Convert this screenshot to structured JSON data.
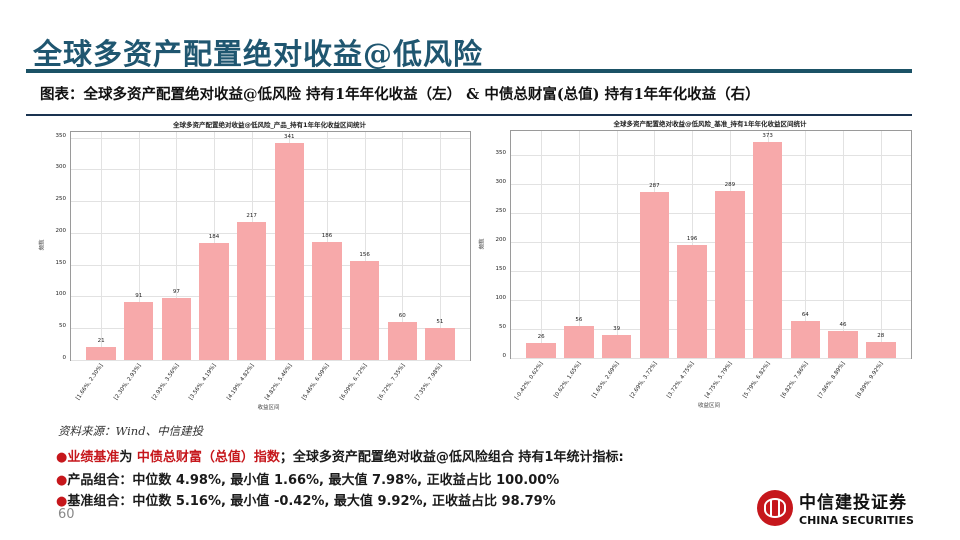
{
  "header": {
    "title": "全球多资产配置绝对收益@低风险",
    "subtitle": "图表：全球多资产配置绝对收益@低风险 持有1年年化收益（左） & 中债总财富(总值) 持有1年年化收益（右）"
  },
  "colors": {
    "title": "#1f5670",
    "rule": "#1b5266",
    "bar": "#f7a9aa",
    "accent_red": "#c6171c"
  },
  "chart_data": [
    {
      "type": "bar",
      "title": "全球多资产配置绝对收益@低风险_产品_持有1年年化收益区间统计",
      "xlabel": "收益区间",
      "ylabel": "频数",
      "categories": [
        "[1.66%, 2.30%]",
        "[2.30%, 2.93%]",
        "[2.93%, 3.56%]",
        "[3.56%, 4.19%]",
        "[4.19%, 4.82%]",
        "[4.82%, 5.46%]",
        "[5.46%, 6.09%]",
        "[6.09%, 6.72%]",
        "[6.72%, 7.35%]",
        "[7.35%, 7.98%]"
      ],
      "values": [
        21,
        91,
        97,
        184,
        217,
        341,
        186,
        156,
        60,
        51
      ],
      "yticks": [
        0,
        50,
        100,
        150,
        200,
        250,
        300,
        350
      ],
      "ylim": [
        0,
        359
      ],
      "grid": true
    },
    {
      "type": "bar",
      "title": "全球多资产配置绝对收益@低风险_基准_持有1年年化收益区间统计",
      "xlabel": "收益区间",
      "ylabel": "频数",
      "categories": [
        "[-0.42%, 0.62%]",
        "[0.62%, 1.65%]",
        "[1.65%, 2.69%]",
        "[2.69%, 3.72%]",
        "[3.72%, 4.75%]",
        "[4.75%, 5.79%]",
        "[5.79%, 6.82%]",
        "[6.82%, 7.86%]",
        "[7.86%, 8.89%]",
        "[8.89%, 9.92%]"
      ],
      "values": [
        26,
        56,
        39,
        287,
        196,
        289,
        373,
        64,
        46,
        28
      ],
      "yticks": [
        0,
        50,
        100,
        150,
        200,
        250,
        300,
        350
      ],
      "ylim": [
        0,
        392
      ],
      "grid": true
    }
  ],
  "footer": {
    "source": "资料来源：Wind、中信建投",
    "line1_bullet": "●",
    "line1_red1": "业绩基准",
    "line1_text1": "为 ",
    "line1_red2": "中债总财富（总值）指数",
    "line1_text2": "；全球多资产配置绝对收益@低风险组合 持有1年统计指标:",
    "line2": "产品组合：中位数 4.98%, 最小值 1.66%, 最大值 7.98%, 正收益占比 100.00%",
    "line3": "基准组合：中位数 5.16%, 最小值 -0.42%, 最大值 9.92%, 正收益占比 98.79%",
    "page_number": "60"
  },
  "logo": {
    "cn": "中信建投证券",
    "en": "CHINA SECURITIES"
  }
}
